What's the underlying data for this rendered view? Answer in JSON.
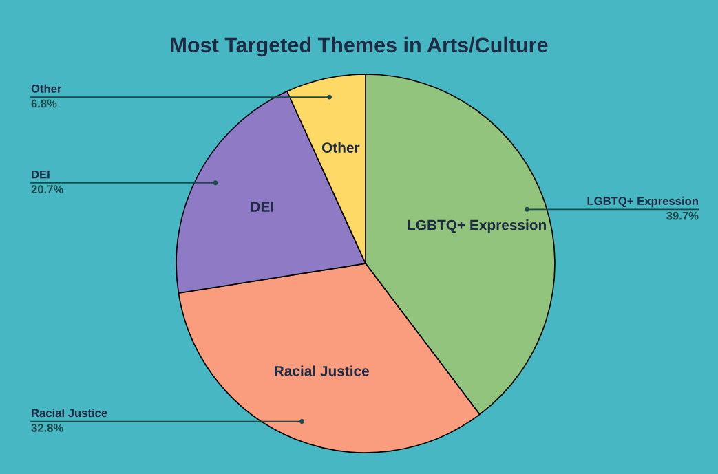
{
  "chart_data": {
    "type": "pie",
    "title": "Most Targeted Themes in Arts/Culture",
    "categories": [
      "LGBTQ+ Expression",
      "Racial Justice",
      "DEI",
      "Other"
    ],
    "values": [
      39.7,
      32.8,
      20.7,
      6.8
    ],
    "value_labels": [
      "39.7%",
      "32.8%",
      "20.7%",
      "6.8%"
    ],
    "colors": [
      "#93c47d",
      "#f99d7e",
      "#8e7ac5",
      "#ffd966"
    ],
    "legend": false
  }
}
